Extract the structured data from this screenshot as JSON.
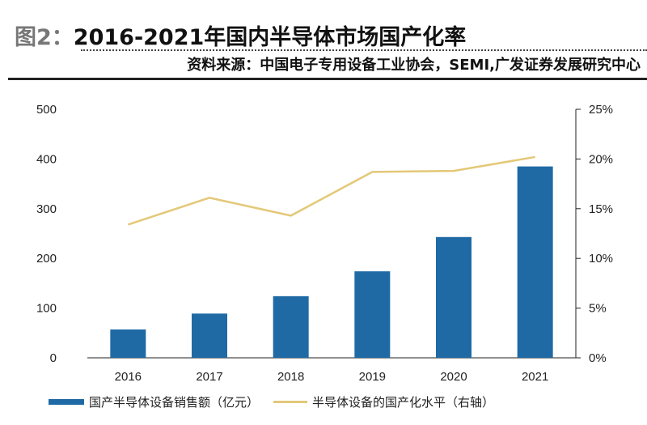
{
  "header": {
    "figure_label": "图2：",
    "title": "2016-2021年国内半导体市场国产化率",
    "source": "资料来源：中国电子专用设备工业协会，SEMI,广发证券发展研究中心"
  },
  "chart_data": {
    "type": "bar+line",
    "categories": [
      "2016",
      "2017",
      "2018",
      "2019",
      "2020",
      "2021"
    ],
    "series": [
      {
        "name": "国产半导体设备销售额（亿元）",
        "type": "bar",
        "axis": "left",
        "color": "#1f6aa5",
        "values": [
          57,
          89,
          124,
          174,
          243,
          385
        ]
      },
      {
        "name": "半导体设备的国产化水平（右轴）",
        "type": "line",
        "axis": "right",
        "color": "#e3c878",
        "values": [
          13.4,
          16.1,
          14.3,
          18.7,
          18.8,
          20.2
        ]
      }
    ],
    "left_axis": {
      "ylim": [
        0,
        500
      ],
      "ticks": [
        "0",
        "100",
        "200",
        "300",
        "400",
        "500"
      ]
    },
    "right_axis": {
      "ylim": [
        0,
        25
      ],
      "ticks": [
        "0%",
        "5%",
        "10%",
        "15%",
        "20%",
        "25%"
      ]
    },
    "grid": false,
    "legend": "bottom"
  }
}
